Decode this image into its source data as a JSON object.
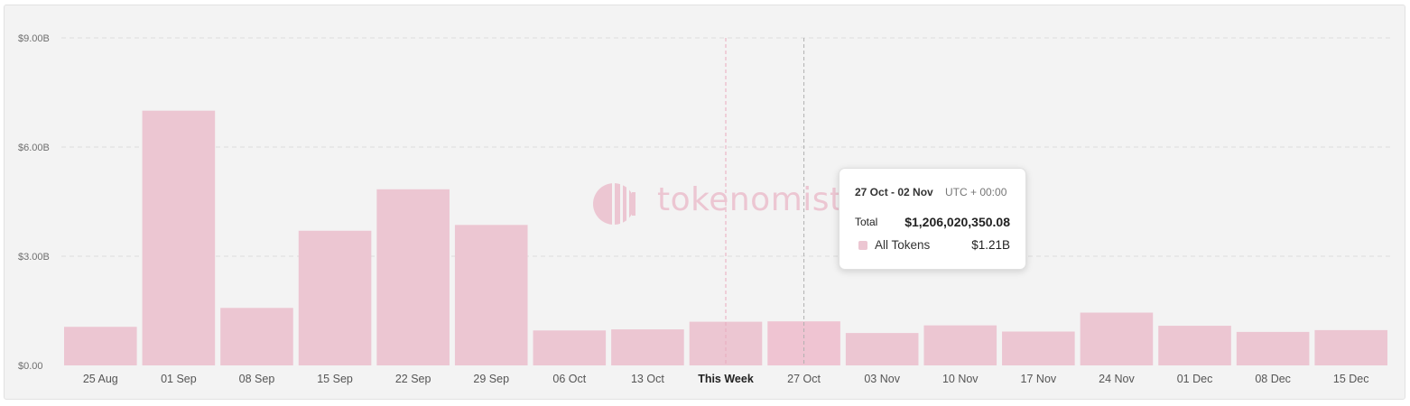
{
  "chart_data": {
    "type": "bar",
    "categories": [
      "25 Aug",
      "01 Sep",
      "08 Sep",
      "15 Sep",
      "22 Sep",
      "29 Sep",
      "06 Oct",
      "13 Oct",
      "This Week",
      "27 Oct",
      "03 Nov",
      "10 Nov",
      "17 Nov",
      "24 Nov",
      "01 Dec",
      "08 Dec",
      "15 Dec"
    ],
    "series": [
      {
        "name": "All Tokens",
        "values": [
          1.06,
          7.0,
          1.58,
          3.7,
          4.84,
          3.86,
          0.96,
          0.99,
          1.2,
          1.21,
          0.89,
          1.1,
          0.93,
          1.45,
          1.09,
          0.92,
          0.97
        ]
      }
    ],
    "ylim": [
      0,
      9
    ],
    "yticks": [
      {
        "value": 0,
        "label": "$0.00"
      },
      {
        "value": 3,
        "label": "$3.00B"
      },
      {
        "value": 6,
        "label": "$6.00B"
      },
      {
        "value": 9,
        "label": "$9.00B"
      }
    ],
    "highlight_category": "This Week",
    "hovered_category": "27 Oct",
    "grid": true,
    "legend": "none",
    "colors": {
      "bar": "#ecc6d2",
      "bar_hover": "#efc4d2",
      "current_week_line": "#e9a9bd",
      "hover_line": "#b0b0b0"
    }
  },
  "tooltip": {
    "range": "27 Oct - 02 Nov",
    "timezone": "UTC + 00:00",
    "total_label": "Total",
    "total_value": "$1,206,020,350.08",
    "series_label": "All Tokens",
    "series_value": "$1.21B"
  },
  "watermark": {
    "text": "tokenomist"
  }
}
